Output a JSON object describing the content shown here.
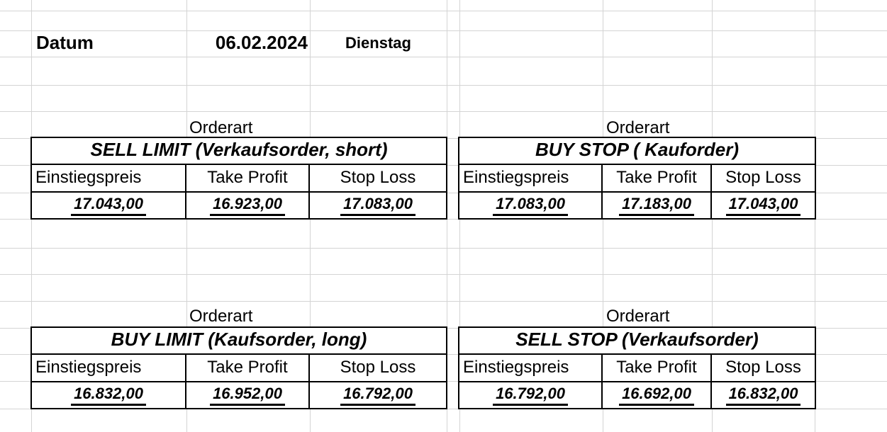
{
  "header": {
    "datum_label": "Datum",
    "date_value": "06.02.2024",
    "weekday": "Dienstag"
  },
  "orderart_label": "Orderart",
  "tables": [
    {
      "caption": "SELL LIMIT (Verkaufsorder, short)",
      "columns": [
        "Einstiegspreis",
        "Take Profit",
        "Stop Loss"
      ],
      "values": [
        "17.043,00",
        "16.923,00",
        "17.083,00"
      ]
    },
    {
      "caption": "BUY STOP ( Kauforder)",
      "columns": [
        "Einstiegspreis",
        "Take Profit",
        "Stop Loss"
      ],
      "values": [
        "17.083,00",
        "17.183,00",
        "17.043,00"
      ]
    },
    {
      "caption": "BUY LIMIT (Kaufsorder, long)",
      "columns": [
        "Einstiegspreis",
        "Take Profit",
        "Stop Loss"
      ],
      "values": [
        "16.832,00",
        "16.952,00",
        "16.792,00"
      ]
    },
    {
      "caption": "SELL STOP (Verkaufsorder)",
      "columns": [
        "Einstiegspreis",
        "Take Profit",
        "Stop Loss"
      ],
      "values": [
        "16.792,00",
        "16.692,00",
        "16.832,00"
      ]
    }
  ],
  "colors": {
    "background": "#ffffff",
    "gridline": "#d4d4d4",
    "table_border": "#000000",
    "text": "#000000"
  }
}
